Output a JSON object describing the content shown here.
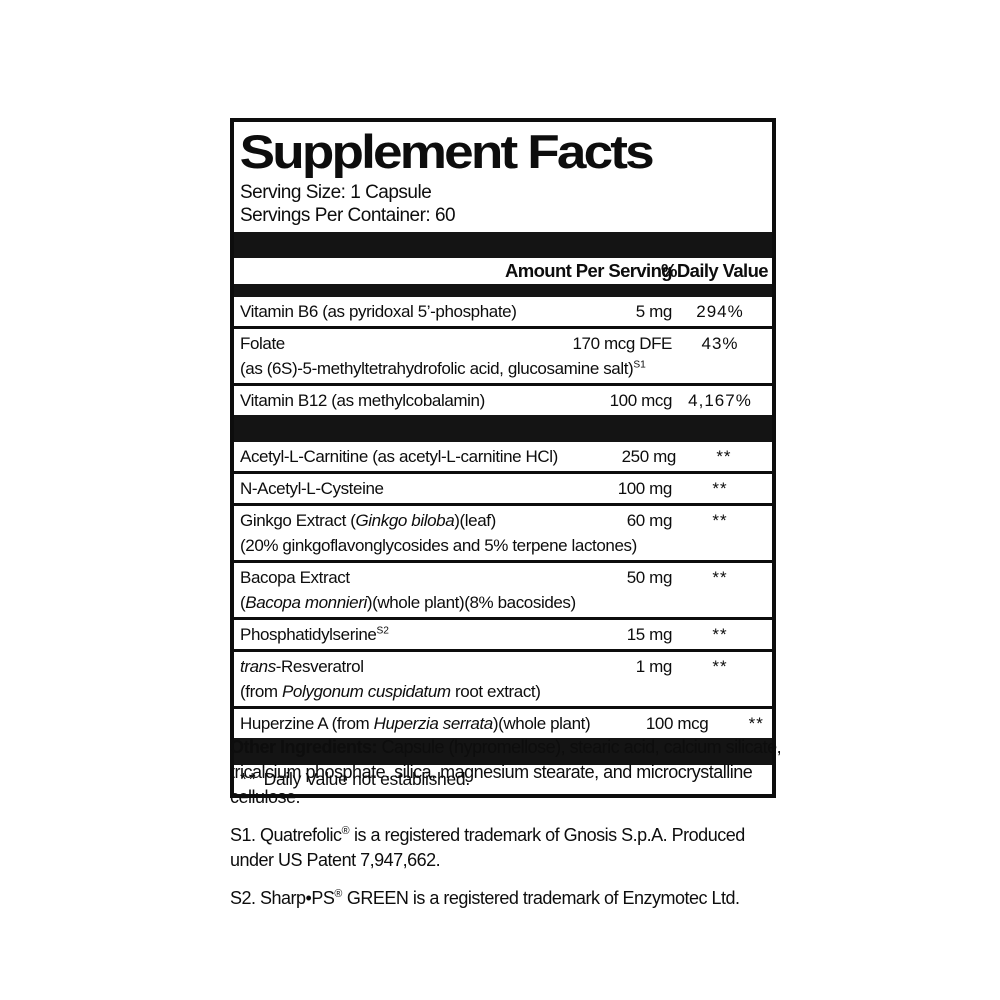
{
  "colors": {
    "ink": "#0d0d0d",
    "bar": "#141414",
    "background": "#ffffff"
  },
  "label": {
    "title": "Supplement Facts",
    "serving_size": "Serving Size: 1 Capsule",
    "servings_per_container": "Servings Per Container: 60",
    "header": {
      "amount": "Amount Per Serving",
      "dv": "%Daily Value"
    },
    "sections": [
      {
        "rows": [
          {
            "name": [
              {
                "t": "Vitamin B6 (as pyridoxal 5’-phosphate)"
              }
            ],
            "amount": "5 mg",
            "dv": "294%"
          },
          {
            "name": [
              {
                "t": "Folate"
              }
            ],
            "amount": "170 mcg DFE",
            "dv": "43%",
            "sub": [
              {
                "t": "(as (6S)-5-methyltetrahydrofolic acid, glucosamine salt)"
              },
              {
                "t": "S1",
                "sup": true
              }
            ]
          },
          {
            "name": [
              {
                "t": "Vitamin B12 (as methylcobalamin)"
              }
            ],
            "amount": "100 mcg",
            "dv": "4,167%"
          }
        ]
      },
      {
        "rows": [
          {
            "name": [
              {
                "t": "Acetyl-L-Carnitine (as acetyl-L-carnitine HCl)"
              }
            ],
            "amount": "250 mg",
            "dv": "**"
          },
          {
            "name": [
              {
                "t": "N-Acetyl-L-Cysteine"
              }
            ],
            "amount": "100 mg",
            "dv": "**"
          },
          {
            "name": [
              {
                "t": "Ginkgo Extract ("
              },
              {
                "t": "Ginkgo biloba",
                "i": true
              },
              {
                "t": ")(leaf)"
              }
            ],
            "amount": "60 mg",
            "dv": "**",
            "sub": [
              {
                "t": "(20% ginkgoflavonglycosides and 5% terpene lactones)"
              }
            ]
          },
          {
            "name": [
              {
                "t": "Bacopa Extract"
              }
            ],
            "amount": "50 mg",
            "dv": "**",
            "sub": [
              {
                "t": "("
              },
              {
                "t": "Bacopa monnieri",
                "i": true
              },
              {
                "t": ")(whole plant)(8% bacosides)"
              }
            ]
          },
          {
            "name": [
              {
                "t": "Phosphatidylserine"
              },
              {
                "t": "S2",
                "sup": true
              }
            ],
            "amount": "15 mg",
            "dv": "**"
          },
          {
            "name": [
              {
                "t": "trans",
                "i": true
              },
              {
                "t": "-Resveratrol"
              }
            ],
            "amount": "1 mg",
            "dv": "**",
            "sub": [
              {
                "t": "(from "
              },
              {
                "t": "Polygonum cuspidatum",
                "i": true
              },
              {
                "t": " root extract)"
              }
            ]
          },
          {
            "name": [
              {
                "t": "Huperzine A (from "
              },
              {
                "t": "Huperzia serrata",
                "i": true
              },
              {
                "t": ")(whole plant)"
              }
            ],
            "amount": "100 mcg",
            "dv": "**"
          }
        ]
      }
    ],
    "footnote": {
      "symbol": "**",
      "text": "Daily Value not established."
    }
  },
  "footer": {
    "paragraphs": [
      [
        {
          "t": "Other Ingredients: ",
          "b": true
        },
        {
          "t": "Capsule (hypromellose), stearic acid, calcium silicate, tricalcium phosphate, silica, magnesium stearate, and microcrystalline cellulose."
        }
      ],
      [
        {
          "t": "S1. Quatrefolic"
        },
        {
          "t": "®",
          "sup": true
        },
        {
          "t": " is a registered trademark of Gnosis S.p.A. Produced under US Patent 7,947,662."
        }
      ],
      [
        {
          "t": "S2. Sharp•PS"
        },
        {
          "t": "®",
          "sup": true
        },
        {
          "t": " GREEN is a registered trademark of Enzymotec Ltd."
        }
      ]
    ]
  }
}
